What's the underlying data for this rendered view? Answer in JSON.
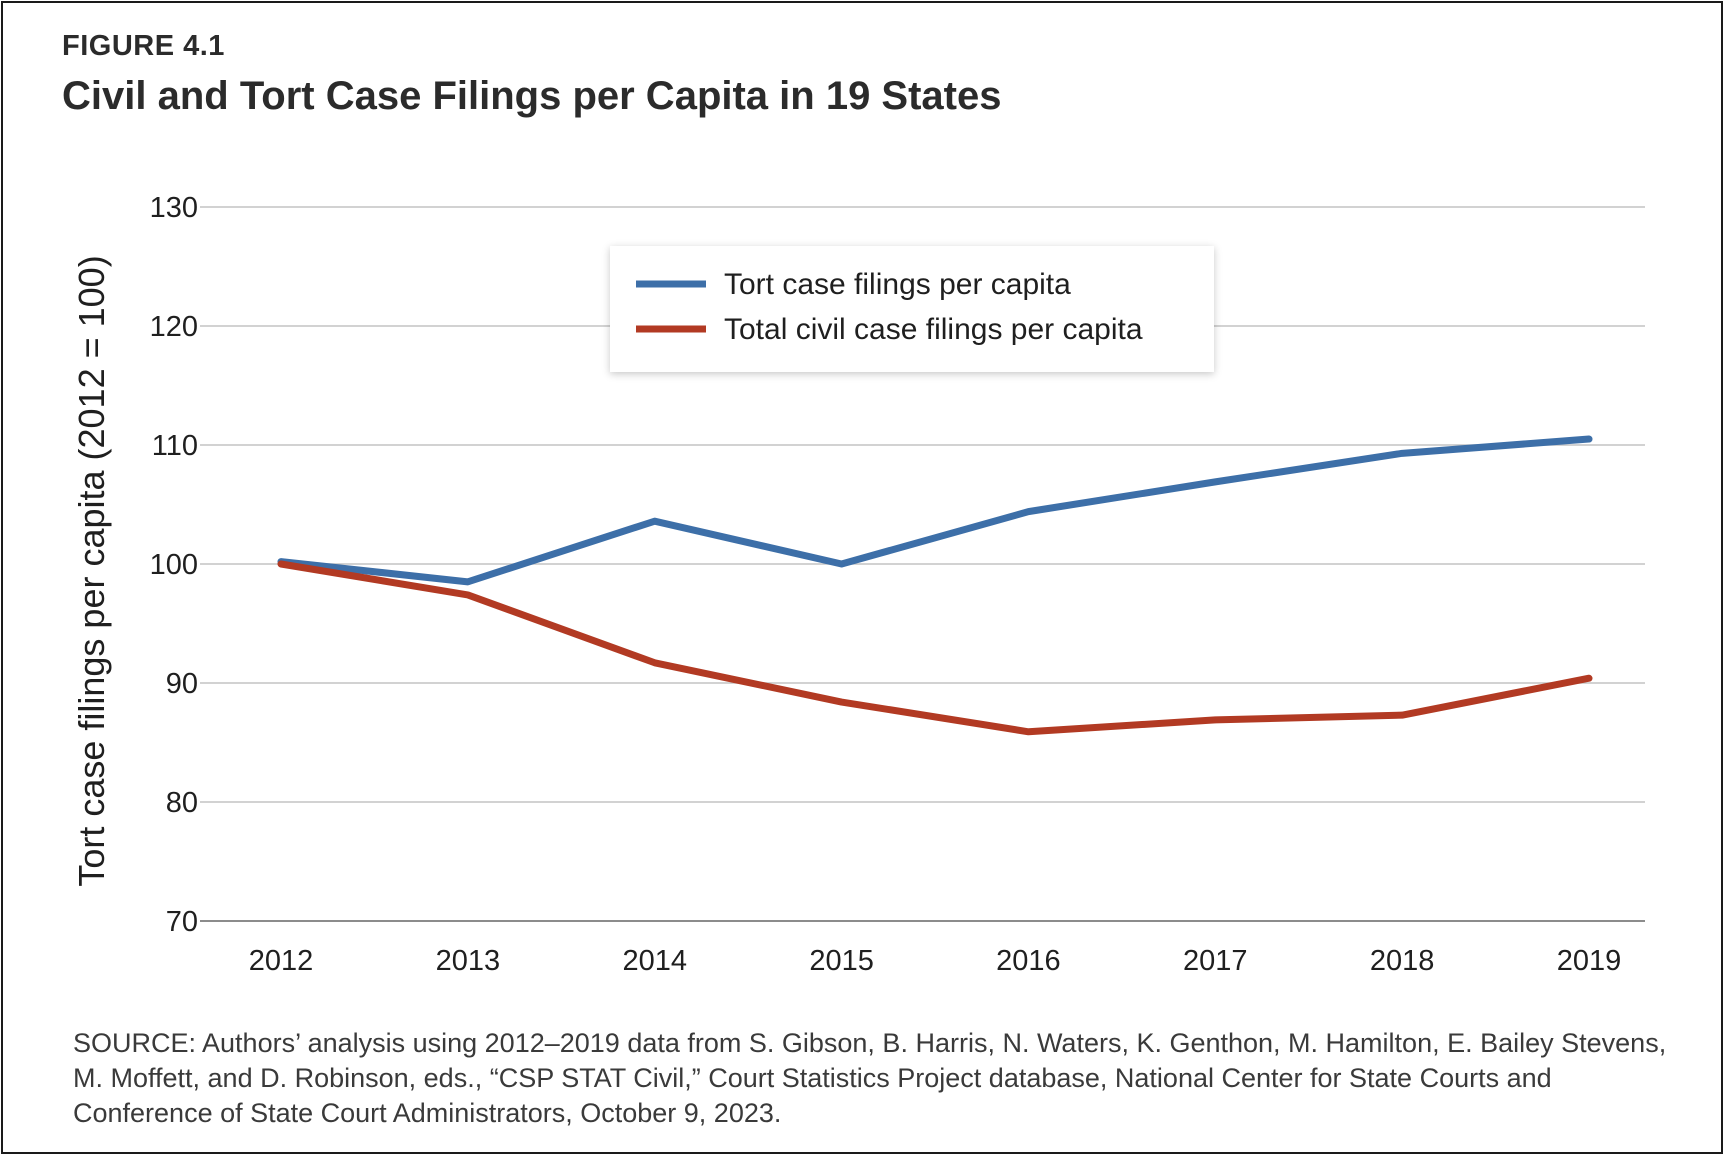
{
  "figure": {
    "label": "FIGURE 4.1",
    "title": "Civil and Tort Case Filings per Capita in 19 States",
    "source": "SOURCE: Authors’ analysis using 2012–2019 data from S. Gibson, B. Harris, N. Waters, K. Genthon, M. Hamilton, E. Bailey Stevens, M. Moffett, and D. Robinson, eds., “CSP STAT Civil,” Court Statistics Project database, National Center for State Courts and Conference of State Court Administrators, October 9, 2023."
  },
  "chart_data": {
    "type": "line",
    "title": "Civil and Tort Case Filings per Capita in 19 States",
    "xlabel": "",
    "ylabel": "Tort case filings per capita (2012 = 100)",
    "categories": [
      "2012",
      "2013",
      "2014",
      "2015",
      "2016",
      "2017",
      "2018",
      "2019"
    ],
    "ylim": [
      70,
      130
    ],
    "yticks": [
      "70",
      "80",
      "90",
      "100",
      "110",
      "120",
      "130"
    ],
    "grid": true,
    "legend_position": "top-center",
    "series": [
      {
        "name": "Tort case filings per capita",
        "color": "#3d6fa8",
        "values": [
          100.2,
          98.5,
          103.6,
          100.0,
          104.4,
          106.9,
          109.3,
          110.5
        ]
      },
      {
        "name": "Total civil case filings per capita",
        "color": "#b23a23",
        "values": [
          100.0,
          97.4,
          91.7,
          88.4,
          85.9,
          86.9,
          87.3,
          90.4
        ]
      }
    ]
  }
}
